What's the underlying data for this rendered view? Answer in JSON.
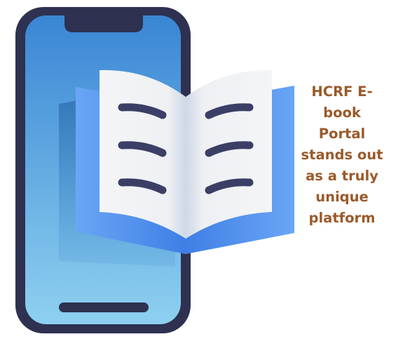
{
  "tagline": "HCRF E-\nbook\nPortal\nstands out\nas a truly\nunique\nplatform",
  "colors": {
    "phone_frame": "#2e3150",
    "screen_top": "#3a86d4",
    "screen_bottom": "#8ed0f0",
    "book_cover": "#5b97ee",
    "book_page": "#f1f2f5",
    "text_lines": "#3b3f66",
    "tagline": "#9a5a2b"
  },
  "icons": [
    "smartphone-icon",
    "open-book-icon"
  ]
}
